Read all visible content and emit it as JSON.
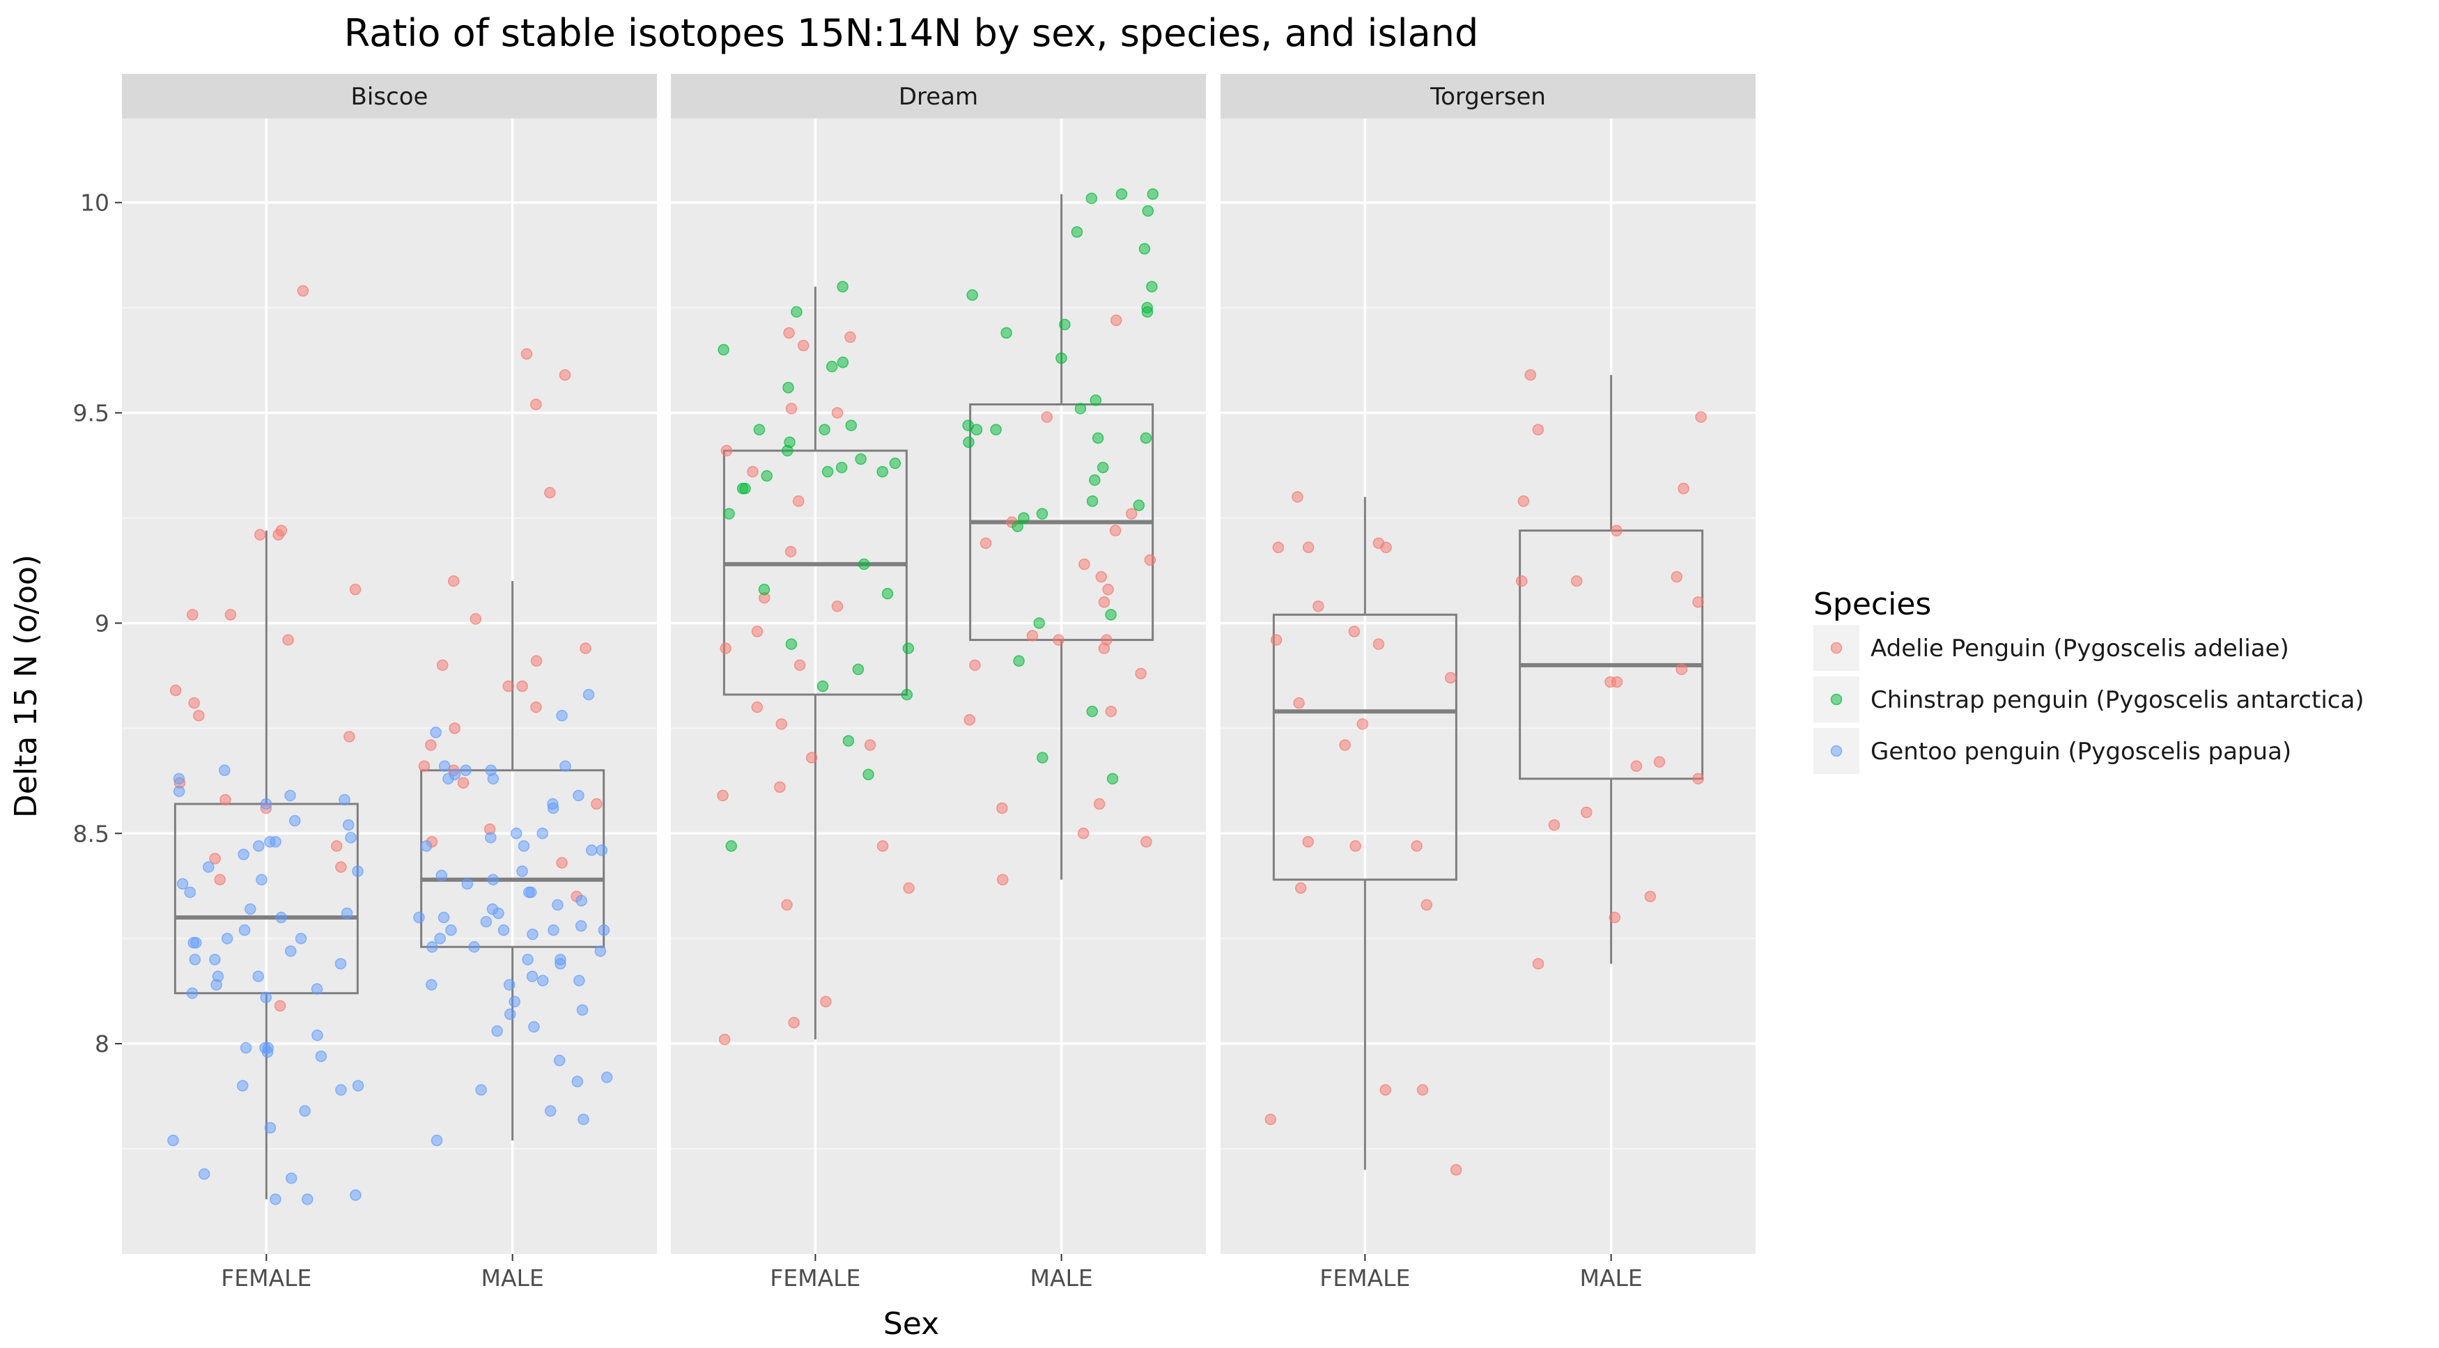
{
  "chart_data": {
    "type": "boxplot-facet",
    "title": "Ratio of stable isotopes 15N:14N by sex, species, and island",
    "xlabel": "Sex",
    "ylabel": "Delta 15 N (o/oo)",
    "ylim": [
      7.5,
      10.2
    ],
    "yticks": [
      8,
      8.5,
      9,
      9.5,
      10
    ],
    "ytick_labels": [
      "8",
      "8.5",
      "9",
      "9.5",
      "10"
    ],
    "categories": [
      "FEMALE",
      "MALE"
    ],
    "facets": [
      "Biscoe",
      "Dream",
      "Torgersen"
    ],
    "grid": true,
    "legend": {
      "title": "Species",
      "placement": "right",
      "entries": [
        {
          "label": "Adelie Penguin (Pygoscelis adeliae)",
          "color": "#F8766D"
        },
        {
          "label": "Chinstrap penguin (Pygoscelis antarctica)",
          "color": "#00BA38"
        },
        {
          "label": "Gentoo penguin (Pygoscelis papua)",
          "color": "#619CFF"
        }
      ]
    },
    "boxes": [
      {
        "facet": "Biscoe",
        "sex": "FEMALE",
        "whisker_low": 7.63,
        "q1": 8.12,
        "median": 8.3,
        "q3": 8.57,
        "whisker_high": 9.22
      },
      {
        "facet": "Biscoe",
        "sex": "MALE",
        "whisker_low": 7.77,
        "q1": 8.23,
        "median": 8.39,
        "q3": 8.65,
        "whisker_high": 9.1
      },
      {
        "facet": "Dream",
        "sex": "FEMALE",
        "whisker_low": 8.01,
        "q1": 8.83,
        "median": 9.14,
        "q3": 9.41,
        "whisker_high": 9.8
      },
      {
        "facet": "Dream",
        "sex": "MALE",
        "whisker_low": 8.39,
        "q1": 8.96,
        "median": 9.24,
        "q3": 9.52,
        "whisker_high": 10.02
      },
      {
        "facet": "Torgersen",
        "sex": "FEMALE",
        "whisker_low": 7.7,
        "q1": 8.39,
        "median": 8.79,
        "q3": 9.02,
        "whisker_high": 9.3
      },
      {
        "facet": "Torgersen",
        "sex": "MALE",
        "whisker_low": 8.19,
        "q1": 8.63,
        "median": 8.9,
        "q3": 9.22,
        "whisker_high": 9.59
      }
    ],
    "points": [
      {
        "facet": "Biscoe",
        "sex": "FEMALE",
        "species": 0,
        "y": [
          9.79,
          9.21,
          8.84,
          8.42,
          8.58,
          8.44,
          8.56,
          8.39,
          8.78,
          8.81,
          8.96,
          9.02,
          9.02,
          9.21,
          9.22,
          9.08,
          8.73,
          8.62,
          8.47,
          8.09
        ]
      },
      {
        "facet": "Biscoe",
        "sex": "FEMALE",
        "species": 2,
        "y": [
          8.65,
          8.63,
          8.41,
          8.31,
          8.27,
          8.24,
          8.25,
          8.3,
          8.13,
          8.16,
          8.11,
          8.02,
          7.9,
          7.84,
          7.99,
          7.97,
          7.89,
          7.64,
          7.63,
          8.42,
          8.52,
          8.53,
          8.45,
          8.58,
          8.25,
          8.22,
          8.14,
          8.19,
          8.36,
          8.39,
          8.47,
          8.48,
          8.38,
          8.32,
          8.24,
          8.2,
          8.2,
          8.16,
          8.12,
          8.6,
          8.59,
          8.57,
          8.48,
          8.49,
          7.98,
          7.99,
          7.99,
          7.9,
          7.8,
          7.77,
          7.68,
          7.69,
          7.63
        ]
      },
      {
        "facet": "Biscoe",
        "sex": "MALE",
        "species": 0,
        "y": [
          9.64,
          9.52,
          9.31,
          8.94,
          8.57,
          8.35,
          8.71,
          8.9,
          8.85,
          8.91,
          9.59,
          8.43,
          8.48,
          8.75,
          8.66,
          8.85,
          8.8,
          9.1,
          9.01,
          8.62,
          8.51,
          8.65
        ]
      },
      {
        "facet": "Biscoe",
        "sex": "MALE",
        "species": 2,
        "y": [
          8.63,
          8.64,
          8.5,
          8.46,
          8.47,
          8.33,
          8.34,
          8.27,
          8.27,
          8.19,
          8.15,
          8.03,
          7.96,
          7.89,
          8.22,
          8.23,
          8.2,
          8.25,
          8.27,
          8.28,
          8.3,
          8.16,
          8.14,
          8.23,
          8.36,
          8.29,
          8.49,
          8.56,
          8.57,
          8.59,
          8.65,
          8.74,
          8.78,
          8.83,
          8.5,
          8.47,
          8.41,
          8.4,
          8.38,
          8.36,
          8.31,
          8.27,
          8.26,
          8.2,
          8.08,
          8.07,
          8.04,
          7.84,
          7.82,
          7.77,
          8.63,
          8.66,
          8.65,
          8.66,
          8.46,
          8.39,
          8.32,
          8.3,
          8.14,
          8.15,
          8.1,
          7.92,
          7.91
        ]
      },
      {
        "facet": "Dream",
        "sex": "FEMALE",
        "species": 0,
        "y": [
          9.66,
          9.51,
          9.36,
          9.17,
          9.04,
          8.98,
          8.94,
          8.9,
          8.8,
          8.71,
          8.68,
          8.61,
          8.59,
          8.33,
          8.01,
          8.1,
          8.37,
          8.76,
          8.05,
          8.47,
          9.06,
          9.29,
          9.5,
          9.69,
          9.68,
          9.41
        ]
      },
      {
        "facet": "Dream",
        "sex": "FEMALE",
        "species": 1,
        "y": [
          9.8,
          9.61,
          9.47,
          9.36,
          9.36,
          9.35,
          9.32,
          9.14,
          9.07,
          8.89,
          8.85,
          8.83,
          8.72,
          8.64,
          8.47,
          9.62,
          9.65,
          9.56,
          9.46,
          9.26,
          9.41,
          9.46,
          9.43,
          9.37,
          9.38,
          9.32,
          9.08,
          9.74,
          9.39,
          8.95,
          8.94
        ]
      },
      {
        "facet": "Dream",
        "sex": "MALE",
        "species": 0,
        "y": [
          9.72,
          9.49,
          9.24,
          9.22,
          9.11,
          9.05,
          8.96,
          8.96,
          8.97,
          8.88,
          8.77,
          8.57,
          8.5,
          8.48,
          8.39,
          9.19,
          9.15,
          8.9,
          8.79,
          9.26,
          9.14,
          9.08,
          8.94,
          8.56
        ]
      },
      {
        "facet": "Dream",
        "sex": "MALE",
        "species": 1,
        "y": [
          9.93,
          9.69,
          9.37,
          9.25,
          9.02,
          9.34,
          9.0,
          8.68,
          10.01,
          10.02,
          9.98,
          9.78,
          9.75,
          9.71,
          9.46,
          9.43,
          9.44,
          9.47,
          9.51,
          9.53,
          9.63,
          9.74,
          9.8,
          9.28,
          9.26,
          9.23,
          8.91,
          9.89,
          9.46,
          9.44,
          9.29,
          8.63,
          8.79,
          10.02
        ]
      },
      {
        "facet": "Torgersen",
        "sex": "FEMALE",
        "species": 0,
        "y": [
          9.04,
          8.71,
          8.48,
          7.89,
          7.82,
          8.95,
          8.47,
          8.33,
          9.18,
          9.18,
          9.3,
          9.18,
          8.98,
          8.96,
          7.7,
          8.81,
          8.76,
          8.47,
          8.37,
          7.89,
          8.87,
          9.19
        ]
      },
      {
        "facet": "Torgersen",
        "sex": "MALE",
        "species": 0,
        "y": [
          9.1,
          9.1,
          9.11,
          9.32,
          8.86,
          9.22,
          8.35,
          8.55,
          8.3,
          8.66,
          8.52,
          8.63,
          8.67,
          8.86,
          9.05,
          9.46,
          9.59,
          9.29,
          9.49,
          8.89,
          8.19
        ]
      }
    ]
  }
}
